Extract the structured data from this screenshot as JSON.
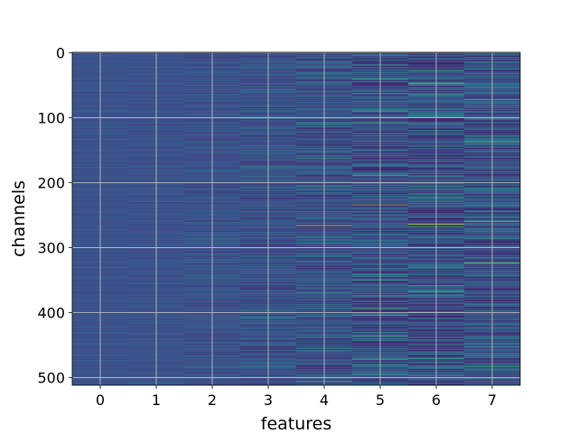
{
  "chart_data": {
    "type": "heatmap",
    "title": "",
    "xlabel": "features",
    "ylabel": "channels",
    "x_categories": [
      "0",
      "1",
      "2",
      "3",
      "4",
      "5",
      "6",
      "7"
    ],
    "y_ticks": [
      0,
      100,
      200,
      300,
      400,
      500
    ],
    "y_range": [
      0,
      511
    ],
    "rows": 512,
    "grid": true,
    "colormap": "viridis",
    "colors": {
      "background_base": "#3b528b",
      "colormap_stops": [
        "#440154",
        "#3b528b",
        "#21918c",
        "#5ec962",
        "#fde725"
      ],
      "grid": "#c9c9c9",
      "axis": "#000000"
    },
    "column_variation": [
      0.02,
      0.03,
      0.05,
      0.08,
      0.12,
      0.16,
      0.18,
      0.16
    ],
    "highlights": [
      {
        "feature": 4,
        "channel": 266,
        "value": 0.85
      },
      {
        "feature": 5,
        "channel": 234,
        "value": 0.85
      },
      {
        "feature": 6,
        "channel": 264,
        "value": 0.9
      },
      {
        "feature": 7,
        "channel": 260,
        "value": 0.8
      },
      {
        "feature": 7,
        "channel": 324,
        "value": 0.8
      },
      {
        "feature": 7,
        "channel": 137,
        "value": 0.7
      },
      {
        "feature": 6,
        "channel": 28,
        "value": 0.6
      },
      {
        "feature": 5,
        "channel": 108,
        "value": 0.6
      },
      {
        "feature": 4,
        "channel": 162,
        "value": 0.6
      },
      {
        "feature": 5,
        "channel": 436,
        "value": 0.6
      },
      {
        "feature": 6,
        "channel": 470,
        "value": 0.55
      },
      {
        "feature": 7,
        "channel": 72,
        "value": 0.6
      }
    ]
  }
}
